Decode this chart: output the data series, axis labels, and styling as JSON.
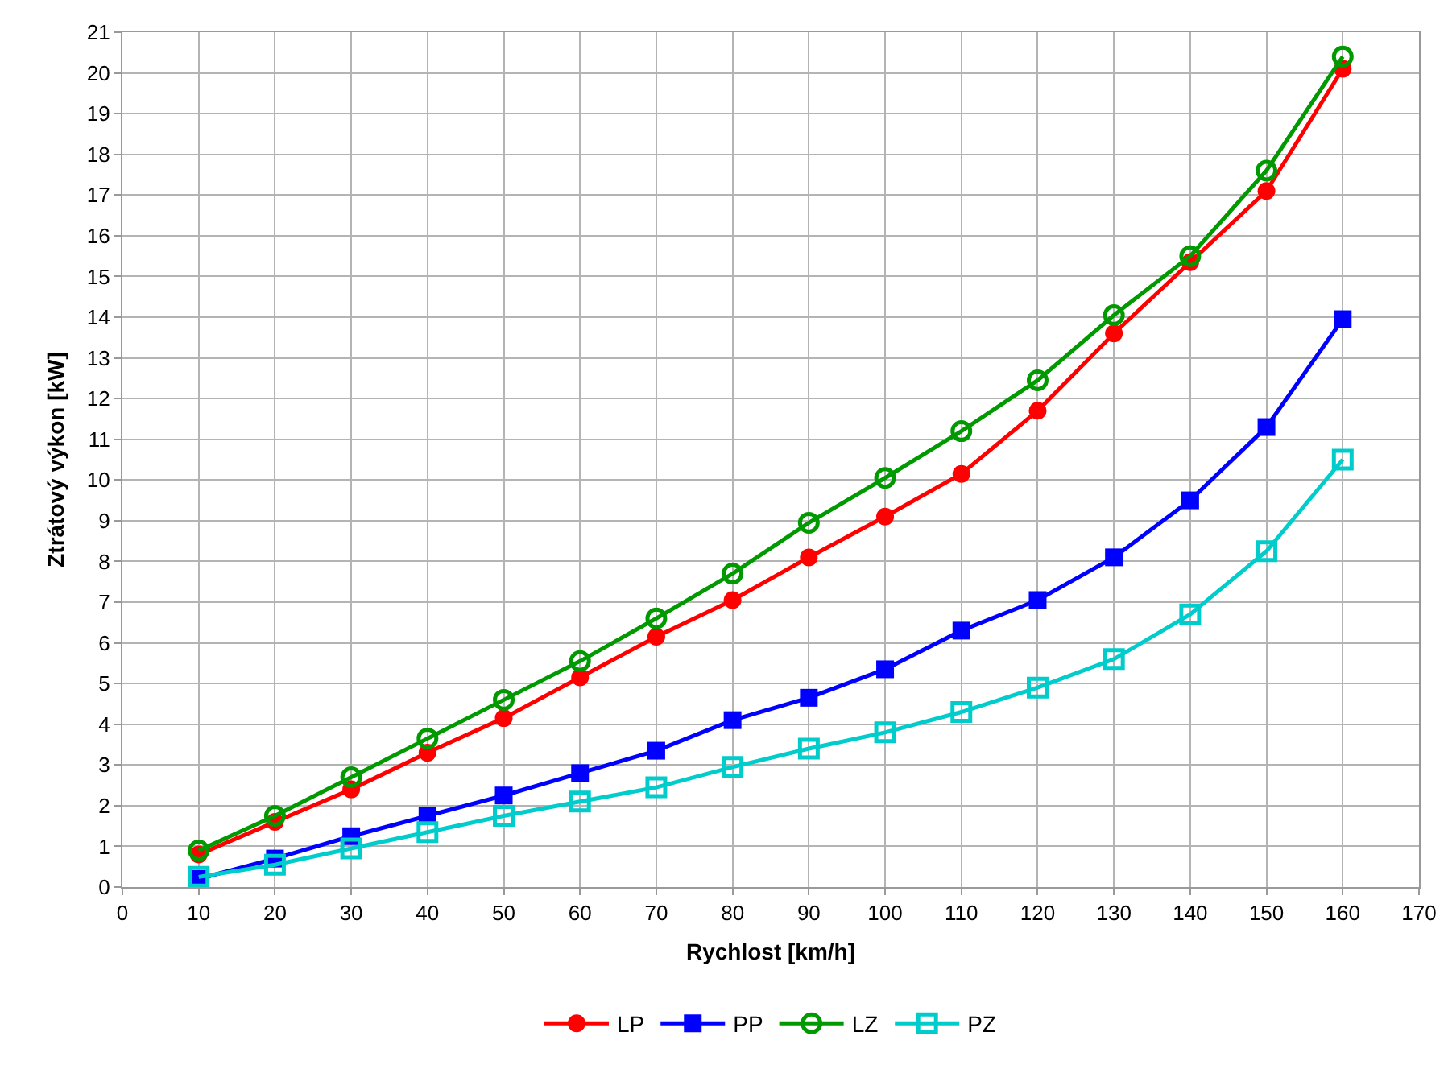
{
  "chart_data": {
    "type": "line",
    "xlabel": "Rychlost [km/h]",
    "ylabel": "Ztrátový výkon [kW]",
    "x": [
      10,
      20,
      30,
      40,
      50,
      60,
      70,
      80,
      90,
      100,
      110,
      120,
      130,
      140,
      150,
      160
    ],
    "series": [
      {
        "name": "LP",
        "color": "#ff0000",
        "marker": "circle",
        "values": [
          0.8,
          1.6,
          2.4,
          3.3,
          4.15,
          5.15,
          6.15,
          7.05,
          8.1,
          9.1,
          10.15,
          11.7,
          13.6,
          15.35,
          17.1,
          20.1
        ]
      },
      {
        "name": "PP",
        "color": "#0000ff",
        "marker": "square",
        "values": [
          0.2,
          0.7,
          1.25,
          1.75,
          2.25,
          2.8,
          3.35,
          4.1,
          4.65,
          5.35,
          6.3,
          7.05,
          8.1,
          9.5,
          11.3,
          13.95
        ]
      },
      {
        "name": "LZ",
        "color": "#009900",
        "marker": "circle-open",
        "values": [
          0.9,
          1.75,
          2.7,
          3.65,
          4.6,
          5.55,
          6.6,
          7.7,
          8.95,
          10.05,
          11.2,
          12.45,
          14.05,
          15.5,
          17.6,
          20.4
        ]
      },
      {
        "name": "PZ",
        "color": "#00cccc",
        "marker": "square-open",
        "values": [
          0.25,
          0.55,
          0.95,
          1.35,
          1.75,
          2.1,
          2.45,
          2.95,
          3.4,
          3.8,
          4.3,
          4.9,
          5.6,
          6.7,
          8.25,
          10.5
        ]
      }
    ],
    "xlim": [
      0,
      170
    ],
    "xticks": [
      0,
      10,
      20,
      30,
      40,
      50,
      60,
      70,
      80,
      90,
      100,
      110,
      120,
      130,
      140,
      150,
      160,
      170
    ],
    "ylim": [
      0,
      21
    ],
    "yticks": [
      0,
      1,
      2,
      3,
      4,
      5,
      6,
      7,
      8,
      9,
      10,
      11,
      12,
      13,
      14,
      15,
      16,
      17,
      18,
      19,
      20,
      21
    ],
    "grid": true,
    "legend": "bottom",
    "line_style": "solid"
  }
}
